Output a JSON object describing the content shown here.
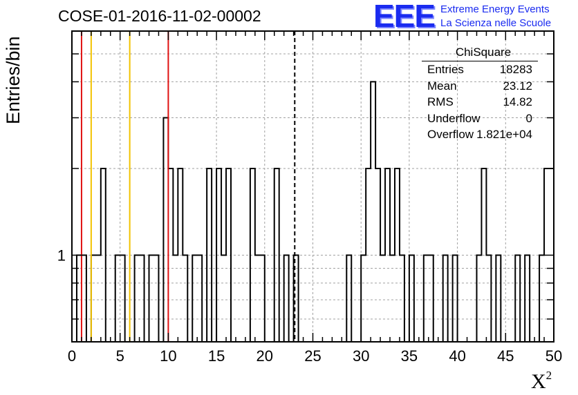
{
  "header": {
    "title": "COSE-01-2016-11-02-00002",
    "logo_main": "EEE",
    "logo_line1": "Extreme Energy Events",
    "logo_line2": "La Scienza nelle Scuole"
  },
  "axes": {
    "xlabel": "X",
    "xlabel_sup": "2",
    "ylabel": "Entries/bin"
  },
  "stats": {
    "title": "ChiSquare",
    "rows": [
      {
        "label": "Entries",
        "value": "18283"
      },
      {
        "label": "Mean",
        "value": "23.12"
      },
      {
        "label": "RMS",
        "value": "14.82"
      },
      {
        "label": "Underflow",
        "value": "0"
      },
      {
        "label": "Overflow",
        "value": "1.821e+04"
      }
    ]
  },
  "chart_data": {
    "type": "bar",
    "histogram": true,
    "x_range": [
      0,
      50
    ],
    "bin_width": 0.5,
    "y_scale": "log",
    "y_range": [
      0.5,
      6
    ],
    "x_ticks": [
      0,
      5,
      10,
      15,
      20,
      25,
      30,
      35,
      40,
      45,
      50
    ],
    "y_tick_labels": [
      {
        "value": 1,
        "label": "1"
      }
    ],
    "grid": true,
    "bin_starts": [
      0.5,
      1.0,
      2.0,
      2.5,
      3.0,
      4.5,
      5.0,
      6.5,
      7.0,
      8.0,
      8.5,
      9.5,
      10.0,
      10.5,
      11.0,
      11.5,
      12.5,
      13.0,
      14.0,
      15.0,
      15.5,
      16.0,
      18.5,
      19.0,
      19.5,
      21.0,
      22.0,
      23.0,
      28.5,
      30.0,
      30.5,
      31.0,
      31.5,
      32.0,
      32.5,
      33.0,
      33.5,
      34.0,
      35.0,
      36.5,
      37.0,
      38.5,
      39.5,
      42.0,
      42.5,
      43.0,
      44.0,
      46.0,
      47.0,
      48.5,
      49.0,
      49.5
    ],
    "bin_values": [
      1,
      1,
      1,
      1,
      2,
      1,
      1,
      1,
      1,
      1,
      1,
      3,
      2,
      1,
      2,
      1,
      1,
      1,
      2,
      2,
      1,
      2,
      2,
      1,
      1,
      2,
      1,
      1,
      1,
      1,
      2,
      4,
      2,
      1,
      2,
      1,
      2,
      1,
      1,
      1,
      1,
      1,
      1,
      1,
      2,
      1,
      1,
      1,
      1,
      1,
      2,
      2
    ],
    "vertical_lines": [
      {
        "x": 1,
        "color": "#e01010",
        "style": "solid"
      },
      {
        "x": 2,
        "color": "#f2c200",
        "style": "solid"
      },
      {
        "x": 6,
        "color": "#f2c200",
        "style": "solid"
      },
      {
        "x": 10,
        "color": "#e01010",
        "style": "solid"
      },
      {
        "x": 23.12,
        "color": "#000000",
        "style": "dashed"
      }
    ]
  }
}
